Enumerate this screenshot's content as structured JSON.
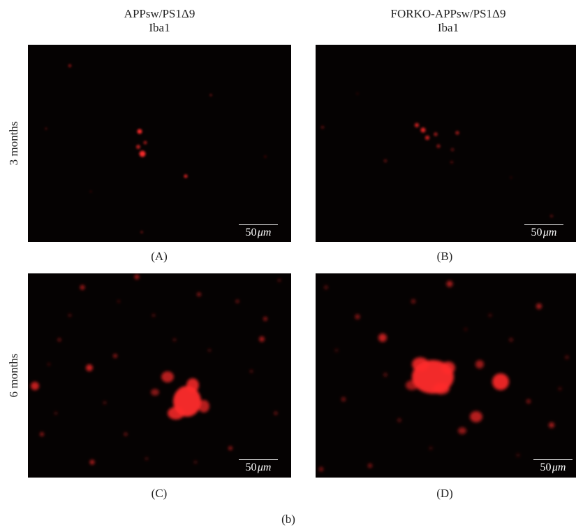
{
  "columns": [
    {
      "group": "APPsw/PS1Δ9",
      "stain": "Iba1"
    },
    {
      "group": "FORKO-APPsw/PS1Δ9",
      "stain": "Iba1"
    }
  ],
  "rows": [
    {
      "label": "3 months"
    },
    {
      "label": "6 months"
    }
  ],
  "panels": [
    {
      "caption": "(A)",
      "scale_value": "50",
      "scale_unit": "μm"
    },
    {
      "caption": "(B)",
      "scale_value": "50",
      "scale_unit": "μm"
    },
    {
      "caption": "(C)",
      "scale_value": "50",
      "scale_unit": "μm"
    },
    {
      "caption": "(D)",
      "scale_value": "50",
      "scale_unit": "μm"
    }
  ],
  "figure_label": "(b)",
  "colors": {
    "background": "#050202",
    "stain": "#ff2a2a",
    "scalebar": "#ffffff"
  }
}
